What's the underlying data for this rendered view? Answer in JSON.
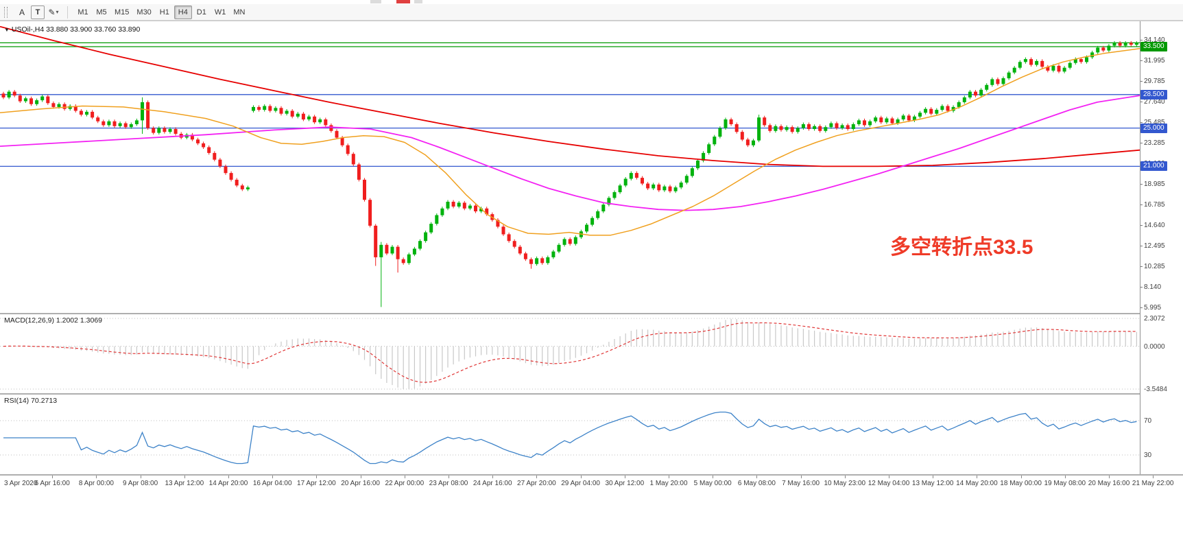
{
  "toolbar": {
    "tools": [
      {
        "id": "cursor-tool-a",
        "label": "A"
      },
      {
        "id": "text-tool",
        "label": "T"
      },
      {
        "id": "drawing-tool",
        "label": "✎"
      }
    ],
    "timeframes": [
      "M1",
      "M5",
      "M15",
      "M30",
      "H1",
      "H4",
      "D1",
      "W1",
      "MN"
    ],
    "selected_timeframe": "H4"
  },
  "chart": {
    "title": "USOil-,H4 33.880 33.900 33.760 33.890",
    "title_marker": "▼",
    "annotation": "多空转折点33.5",
    "ohlc": {
      "open": "33.880",
      "high": "33.900",
      "low": "33.760",
      "close": "33.890"
    }
  },
  "chart_data": {
    "type": "candlestick",
    "symbol": "USOil-",
    "timeframe": "H4",
    "colors": {
      "up": "#00b20d",
      "down": "#f01e1e"
    },
    "price_axis": {
      "ticks": [
        "34.140",
        "31.995",
        "29.785",
        "27.640",
        "25.485",
        "23.285",
        "21.130",
        "18.985",
        "16.785",
        "14.640",
        "12.495",
        "10.285",
        "8.140",
        "5.995"
      ]
    },
    "levels": [
      {
        "price": 33.9,
        "color": "#009900",
        "label": ""
      },
      {
        "price": 33.5,
        "color": "#009900",
        "label": "33.500"
      },
      {
        "price": 28.5,
        "color": "#3358cf",
        "label": "28.500"
      },
      {
        "price": 25.0,
        "color": "#3358cf",
        "label": "25.000"
      },
      {
        "price": 21.0,
        "color": "#3358cf",
        "label": "21.000"
      }
    ],
    "candles": {
      "open_first": 28.6,
      "wick": 0.18,
      "closes": [
        28.2,
        28.8,
        28.4,
        27.8,
        28.1,
        27.5,
        27.9,
        28.3,
        27.6,
        27.2,
        27.5,
        27.0,
        27.3,
        26.8,
        26.4,
        26.7,
        26.1,
        25.7,
        25.3,
        25.7,
        25.2,
        25.5,
        25.1,
        25.4,
        25.8,
        27.7,
        25.0,
        24.5,
        25.0,
        24.6,
        24.9,
        24.4,
        24.0,
        24.3,
        23.8,
        23.4,
        23.0,
        22.4,
        21.7,
        21.0,
        20.3,
        19.6,
        19.0,
        18.6,
        18.8,
        27.2,
        26.9,
        27.3,
        26.8,
        27.1,
        26.5,
        26.8,
        26.2,
        26.5,
        25.9,
        26.2,
        25.6,
        25.9,
        25.3,
        24.7,
        24.0,
        23.2,
        22.3,
        21.2,
        19.6,
        17.5,
        14.8,
        11.5,
        12.8,
        11.9,
        12.6,
        11.3,
        10.9,
        11.8,
        12.4,
        13.2,
        14.1,
        15.0,
        15.9,
        16.6,
        17.3,
        16.8,
        17.2,
        16.6,
        16.9,
        16.3,
        16.6,
        16.0,
        15.4,
        14.7,
        13.9,
        13.2,
        12.6,
        11.9,
        11.3,
        10.8,
        11.4,
        10.9,
        11.5,
        12.1,
        12.8,
        13.4,
        12.9,
        13.6,
        14.2,
        14.9,
        15.6,
        16.3,
        17.0,
        17.7,
        18.3,
        19.0,
        19.7,
        20.3,
        19.8,
        19.2,
        18.7,
        19.1,
        18.5,
        18.9,
        18.4,
        18.8,
        19.3,
        20.0,
        20.8,
        21.6,
        22.4,
        23.3,
        24.1,
        25.0,
        25.9,
        25.4,
        24.6,
        23.8,
        23.2,
        23.7,
        26.1,
        25.3,
        24.7,
        25.2,
        24.8,
        25.1,
        24.6,
        25.0,
        25.4,
        24.9,
        25.2,
        24.7,
        25.1,
        25.5,
        25.0,
        25.3,
        24.9,
        25.4,
        25.8,
        25.3,
        25.7,
        26.1,
        25.6,
        26.0,
        25.5,
        25.9,
        26.3,
        25.8,
        26.2,
        26.6,
        27.0,
        26.5,
        26.9,
        27.3,
        26.8,
        27.2,
        27.7,
        28.2,
        28.8,
        28.4,
        29.0,
        29.5,
        30.1,
        29.6,
        30.2,
        30.8,
        31.3,
        31.9,
        32.2,
        31.6,
        32.0,
        31.4,
        31.0,
        31.5,
        30.9,
        31.3,
        31.8,
        32.2,
        31.9,
        32.4,
        32.9,
        33.4,
        33.1,
        33.6,
        33.9,
        33.6,
        33.9,
        33.7,
        33.89
      ],
      "overrides": {
        "25": {
          "h": 28.2,
          "l": 24.4
        },
        "45": {
          "o": 26.8
        },
        "67": {
          "l": 10.6
        },
        "68": {
          "l": 6.3,
          "h": 13.1
        },
        "71": {
          "l": 9.9
        },
        "95": {
          "l": 10.3
        },
        "136": {
          "h": 26.4
        }
      }
    },
    "moving_averages": [
      {
        "name": "ma-slow-red",
        "color": "#e60000",
        "width": 1.8,
        "points": [
          [
            0,
            35.6
          ],
          [
            80,
            34.1
          ],
          [
            160,
            32.7
          ],
          [
            240,
            31.4
          ],
          [
            320,
            30.1
          ],
          [
            400,
            28.9
          ],
          [
            480,
            27.7
          ],
          [
            560,
            26.6
          ],
          [
            640,
            25.5
          ],
          [
            720,
            24.5
          ],
          [
            800,
            23.6
          ],
          [
            880,
            22.8
          ],
          [
            960,
            22.1
          ],
          [
            1040,
            21.6
          ],
          [
            1120,
            21.2
          ],
          [
            1200,
            21.0
          ],
          [
            1280,
            21.0
          ],
          [
            1360,
            21.1
          ],
          [
            1440,
            21.4
          ],
          [
            1520,
            21.8
          ],
          [
            1600,
            22.3
          ],
          [
            1662,
            22.7
          ]
        ]
      },
      {
        "name": "ma-mid-magenta",
        "color": "#f322f3",
        "width": 1.8,
        "points": [
          [
            0,
            23.1
          ],
          [
            100,
            23.5
          ],
          [
            200,
            23.9
          ],
          [
            300,
            24.3
          ],
          [
            400,
            24.8
          ],
          [
            480,
            25.1
          ],
          [
            540,
            24.9
          ],
          [
            600,
            24.0
          ],
          [
            640,
            23.0
          ],
          [
            680,
            21.9
          ],
          [
            720,
            20.8
          ],
          [
            760,
            19.7
          ],
          [
            800,
            18.7
          ],
          [
            840,
            17.9
          ],
          [
            880,
            17.2
          ],
          [
            920,
            16.8
          ],
          [
            960,
            16.5
          ],
          [
            1000,
            16.4
          ],
          [
            1040,
            16.5
          ],
          [
            1080,
            16.8
          ],
          [
            1120,
            17.3
          ],
          [
            1160,
            17.9
          ],
          [
            1200,
            18.6
          ],
          [
            1240,
            19.4
          ],
          [
            1280,
            20.2
          ],
          [
            1320,
            21.1
          ],
          [
            1360,
            22.0
          ],
          [
            1400,
            22.9
          ],
          [
            1440,
            23.9
          ],
          [
            1480,
            24.9
          ],
          [
            1520,
            25.9
          ],
          [
            1560,
            26.9
          ],
          [
            1600,
            27.7
          ],
          [
            1662,
            28.4
          ]
        ]
      },
      {
        "name": "ma-fast-orange",
        "color": "#f0a01e",
        "width": 1.5,
        "points": [
          [
            0,
            26.6
          ],
          [
            60,
            27.0
          ],
          [
            120,
            27.3
          ],
          [
            180,
            27.2
          ],
          [
            240,
            26.7
          ],
          [
            300,
            26.0
          ],
          [
            340,
            25.2
          ],
          [
            380,
            24.0
          ],
          [
            410,
            23.4
          ],
          [
            440,
            23.3
          ],
          [
            470,
            23.6
          ],
          [
            500,
            24.0
          ],
          [
            530,
            24.2
          ],
          [
            560,
            24.1
          ],
          [
            590,
            23.5
          ],
          [
            620,
            22.2
          ],
          [
            650,
            20.3
          ],
          [
            680,
            18.0
          ],
          [
            710,
            16.0
          ],
          [
            740,
            14.7
          ],
          [
            770,
            14.0
          ],
          [
            800,
            13.9
          ],
          [
            830,
            14.1
          ],
          [
            860,
            13.8
          ],
          [
            890,
            13.8
          ],
          [
            920,
            14.3
          ],
          [
            950,
            15.0
          ],
          [
            980,
            15.9
          ],
          [
            1010,
            16.8
          ],
          [
            1040,
            17.9
          ],
          [
            1070,
            19.2
          ],
          [
            1100,
            20.5
          ],
          [
            1130,
            21.7
          ],
          [
            1160,
            22.7
          ],
          [
            1190,
            23.5
          ],
          [
            1220,
            24.2
          ],
          [
            1250,
            24.7
          ],
          [
            1280,
            25.1
          ],
          [
            1310,
            25.5
          ],
          [
            1340,
            25.9
          ],
          [
            1370,
            26.4
          ],
          [
            1400,
            27.2
          ],
          [
            1430,
            28.2
          ],
          [
            1460,
            29.3
          ],
          [
            1490,
            30.3
          ],
          [
            1520,
            31.2
          ],
          [
            1550,
            31.9
          ],
          [
            1580,
            32.4
          ],
          [
            1610,
            32.8
          ],
          [
            1662,
            33.3
          ]
        ]
      }
    ],
    "macd": {
      "display": "MACD(12,26,9) 1.2002 1.3069",
      "fast": 12,
      "slow": 26,
      "signal": 9,
      "value": 1.2002,
      "signal_value": 1.3069,
      "axis_labels": [
        "2.3072",
        "0.0000",
        "-3.5484"
      ],
      "axis_top": 2.3072,
      "axis_bottom": -3.5484,
      "histogram_color": "#c8c8c8",
      "signal_color": "#e03535"
    },
    "rsi": {
      "display": "RSI(14) 70.2713",
      "period": 14,
      "value": 70.2713,
      "levels": [
        70,
        30
      ],
      "level_labels": [
        "70",
        "30"
      ],
      "line_color": "#3c82c8"
    },
    "time_axis": [
      "3 Apr 2020",
      "6 Apr 16:00",
      "8 Apr 00:00",
      "9 Apr 08:00",
      "13 Apr 12:00",
      "14 Apr 20:00",
      "16 Apr 04:00",
      "17 Apr 12:00",
      "20 Apr 16:00",
      "22 Apr 00:00",
      "23 Apr 08:00",
      "24 Apr 16:00",
      "27 Apr 20:00",
      "29 Apr 04:00",
      "30 Apr 12:00",
      "1 May 20:00",
      "5 May 00:00",
      "6 May 08:00",
      "7 May 16:00",
      "10 May 23:00",
      "12 May 04:00",
      "13 May 12:00",
      "14 May 20:00",
      "18 May 00:00",
      "19 May 08:00",
      "20 May 16:00",
      "21 May 22:00"
    ]
  }
}
